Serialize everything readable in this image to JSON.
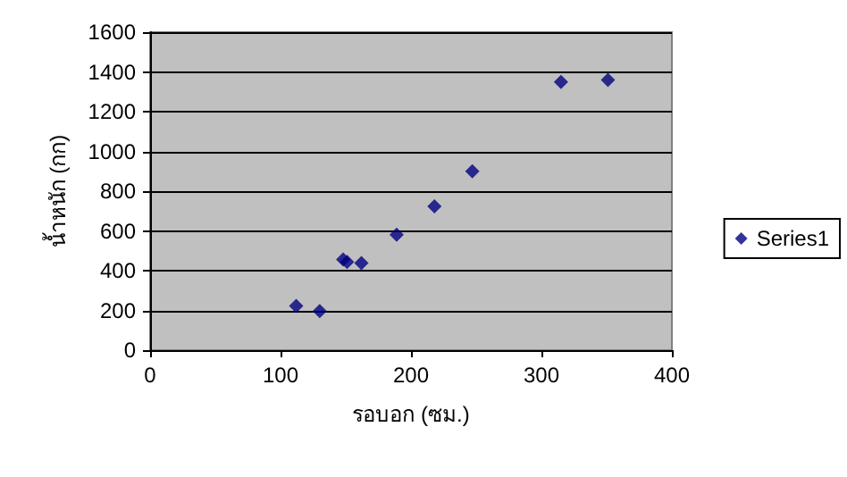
{
  "chart_data": {
    "type": "scatter",
    "xlabel": "รอบอก (ซม.)",
    "ylabel": "น้ำหนัก (กก)",
    "x": [
      112,
      130,
      148,
      151,
      162,
      189,
      218,
      247,
      315,
      351
    ],
    "series": [
      {
        "name": "Series1",
        "color": "#000080",
        "values": [
          223,
          197,
          456,
          444,
          438,
          581,
          724,
          900,
          1350,
          1359
        ]
      }
    ],
    "xlim": [
      0,
      400
    ],
    "xticks": [
      0,
      100,
      200,
      300,
      400
    ],
    "ylim": [
      0,
      1600
    ],
    "yticks": [
      0,
      200,
      400,
      600,
      800,
      1000,
      1200,
      1400,
      1600
    ],
    "grid": "y",
    "legend": "right",
    "marker": "diamond"
  }
}
